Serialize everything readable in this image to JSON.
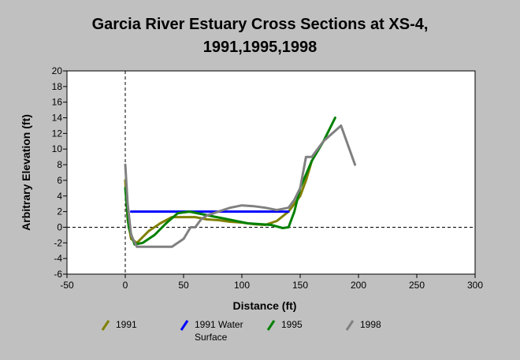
{
  "chart_data": {
    "type": "line",
    "title_lines": [
      "Garcia River Estuary Cross Sections at XS-4,",
      "1991,1995,1998"
    ],
    "xlabel": "Distance (ft)",
    "ylabel": "Arbitrary Elevation (ft)",
    "xlim": [
      -50,
      300
    ],
    "ylim": [
      -6,
      20
    ],
    "xticks": [
      -50,
      0,
      50,
      100,
      150,
      200,
      250,
      300
    ],
    "yticks": [
      -6,
      -4,
      -2,
      0,
      2,
      4,
      6,
      8,
      10,
      12,
      14,
      16,
      18,
      20
    ],
    "reference_lines": [
      {
        "axis": "x",
        "value": 0,
        "style": "dashed"
      },
      {
        "axis": "y",
        "value": 0,
        "style": "dashed"
      }
    ],
    "legend_position": "bottom",
    "series": [
      {
        "name": "1991",
        "legend_lines": [
          "1991"
        ],
        "color": "#808000",
        "x": [
          0,
          2,
          5,
          10,
          20,
          30,
          40,
          50,
          60,
          70,
          80,
          90,
          100,
          110,
          120,
          130,
          140,
          150,
          155,
          160
        ],
        "y": [
          6,
          1,
          -1.5,
          -2,
          -0.5,
          0.5,
          1.3,
          1.3,
          1.3,
          1.0,
          0.9,
          0.7,
          0.6,
          0.4,
          0.3,
          0.8,
          2,
          4,
          6,
          8.5
        ]
      },
      {
        "name": "1991 Water Surface",
        "legend_lines": [
          "1991 Water",
          "Surface"
        ],
        "color": "#0000ff",
        "x": [
          5,
          140
        ],
        "y": [
          2,
          2
        ]
      },
      {
        "name": "1995",
        "legend_lines": [
          "1995"
        ],
        "color": "#008000",
        "x": [
          0,
          3,
          8,
          15,
          25,
          35,
          45,
          55,
          65,
          75,
          85,
          95,
          105,
          115,
          125,
          135,
          140,
          145,
          150,
          160,
          170,
          180
        ],
        "y": [
          5,
          0,
          -2.2,
          -2,
          -1,
          0.5,
          1.8,
          2,
          1.7,
          1.4,
          1.1,
          0.8,
          0.5,
          0.4,
          0.3,
          -0.1,
          0,
          2,
          5,
          8.5,
          11,
          14
        ]
      },
      {
        "name": "1998",
        "legend_lines": [
          "1998"
        ],
        "color": "#808080",
        "x": [
          0,
          2,
          5,
          10,
          20,
          30,
          40,
          45,
          50,
          52,
          56,
          60,
          65,
          70,
          80,
          90,
          100,
          110,
          120,
          130,
          140,
          145,
          150,
          155,
          160,
          170,
          185,
          197
        ],
        "y": [
          8,
          3,
          -1,
          -2.5,
          -2.5,
          -2.5,
          -2.5,
          -2,
          -1.5,
          -1,
          0,
          0,
          1,
          1.5,
          2,
          2.5,
          2.8,
          2.7,
          2.5,
          2.2,
          2.5,
          3.5,
          5,
          9,
          9,
          11,
          13,
          8
        ]
      }
    ]
  }
}
